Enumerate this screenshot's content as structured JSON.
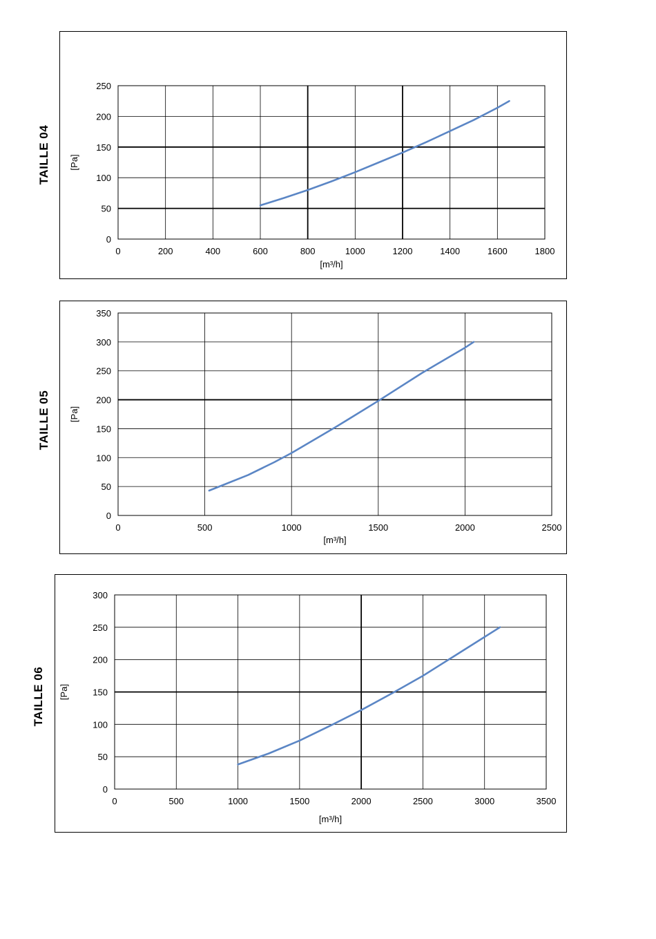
{
  "chart_data": [
    {
      "type": "line",
      "side_title": "TAILLE 04",
      "xlabel": "[m³/h]",
      "ylabel": "[Pa]",
      "xlim": [
        0,
        1800
      ],
      "ylim": [
        0,
        250
      ],
      "xticks": [
        0,
        200,
        400,
        600,
        800,
        1000,
        1200,
        1400,
        1600,
        1800
      ],
      "yticks": [
        0,
        50,
        100,
        150,
        200,
        250
      ],
      "grid": true,
      "line_color": "#5b86c5",
      "series": [
        {
          "x": [
            600,
            700,
            800,
            900,
            1000,
            1100,
            1200,
            1300,
            1400,
            1500,
            1600,
            1650
          ],
          "y": [
            55,
            67,
            80,
            94,
            109,
            125,
            141,
            158,
            176,
            194,
            214,
            225
          ]
        }
      ]
    },
    {
      "type": "line",
      "side_title": "TAILLE 05",
      "xlabel": "[m³/h]",
      "ylabel": "[Pa]",
      "xlim": [
        0,
        2500
      ],
      "ylim": [
        0,
        350
      ],
      "xticks": [
        0,
        500,
        1000,
        1500,
        2000,
        2500
      ],
      "yticks": [
        0,
        50,
        100,
        150,
        200,
        250,
        300,
        350
      ],
      "grid": true,
      "line_color": "#5b86c5",
      "series": [
        {
          "x": [
            525,
            600,
            750,
            900,
            1000,
            1250,
            1500,
            1750,
            2000,
            2050
          ],
          "y": [
            43,
            52,
            70,
            92,
            108,
            152,
            198,
            246,
            290,
            300
          ]
        }
      ]
    },
    {
      "type": "line",
      "side_title": "TAILLE 06",
      "xlabel": "[m³/h]",
      "ylabel": "[Pa]",
      "xlim": [
        0,
        3500
      ],
      "ylim": [
        0,
        300
      ],
      "xticks": [
        0,
        500,
        1000,
        1500,
        2000,
        2500,
        3000,
        3500
      ],
      "yticks": [
        0,
        50,
        100,
        150,
        200,
        250,
        300
      ],
      "grid": true,
      "line_color": "#5b86c5",
      "series": [
        {
          "x": [
            1000,
            1250,
            1500,
            1750,
            2000,
            2250,
            2500,
            2750,
            3000,
            3125
          ],
          "y": [
            38,
            55,
            75,
            98,
            122,
            148,
            175,
            205,
            235,
            250
          ]
        }
      ]
    }
  ]
}
